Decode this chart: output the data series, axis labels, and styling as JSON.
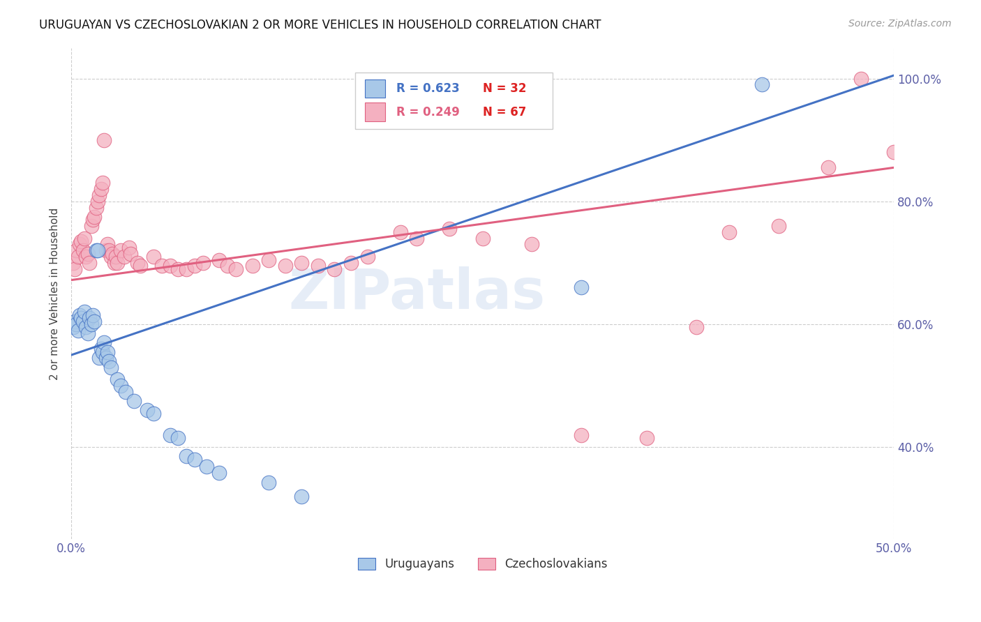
{
  "title": "URUGUAYAN VS CZECHOSLOVAKIAN 2 OR MORE VEHICLES IN HOUSEHOLD CORRELATION CHART",
  "source": "Source: ZipAtlas.com",
  "ylabel": "2 or more Vehicles in Household",
  "xlim": [
    0.0,
    0.5
  ],
  "ylim": [
    0.25,
    1.05
  ],
  "x_ticks": [
    0.0,
    0.5
  ],
  "x_tick_labels": [
    "0.0%",
    "50.0%"
  ],
  "y_ticks": [
    0.4,
    0.6,
    0.8,
    1.0
  ],
  "y_tick_labels": [
    "40.0%",
    "60.0%",
    "80.0%",
    "100.0%"
  ],
  "legend_r1": "R = 0.623",
  "legend_n1": "N = 32",
  "legend_r2": "R = 0.249",
  "legend_n2": "N = 67",
  "blue_color": "#a8c8e8",
  "pink_color": "#f4b0c0",
  "blue_line_color": "#4472c4",
  "pink_line_color": "#e06080",
  "tick_color": "#5b5ea6",
  "watermark_text": "ZIPatlas",
  "blue_scatter": [
    [
      0.001,
      0.595
    ],
    [
      0.002,
      0.605
    ],
    [
      0.003,
      0.6
    ],
    [
      0.004,
      0.59
    ],
    [
      0.005,
      0.615
    ],
    [
      0.006,
      0.61
    ],
    [
      0.007,
      0.605
    ],
    [
      0.008,
      0.62
    ],
    [
      0.009,
      0.595
    ],
    [
      0.01,
      0.585
    ],
    [
      0.011,
      0.61
    ],
    [
      0.012,
      0.6
    ],
    [
      0.013,
      0.615
    ],
    [
      0.014,
      0.605
    ],
    [
      0.015,
      0.72
    ],
    [
      0.016,
      0.72
    ],
    [
      0.017,
      0.545
    ],
    [
      0.018,
      0.56
    ],
    [
      0.019,
      0.555
    ],
    [
      0.02,
      0.57
    ],
    [
      0.021,
      0.545
    ],
    [
      0.022,
      0.555
    ],
    [
      0.023,
      0.54
    ],
    [
      0.024,
      0.53
    ],
    [
      0.028,
      0.51
    ],
    [
      0.03,
      0.5
    ],
    [
      0.033,
      0.49
    ],
    [
      0.038,
      0.475
    ],
    [
      0.046,
      0.46
    ],
    [
      0.05,
      0.455
    ],
    [
      0.06,
      0.42
    ],
    [
      0.065,
      0.415
    ],
    [
      0.07,
      0.385
    ],
    [
      0.075,
      0.38
    ],
    [
      0.082,
      0.368
    ],
    [
      0.09,
      0.358
    ],
    [
      0.12,
      0.342
    ],
    [
      0.14,
      0.32
    ],
    [
      0.31,
      0.66
    ],
    [
      0.42,
      0.99
    ]
  ],
  "pink_scatter": [
    [
      0.001,
      0.7
    ],
    [
      0.002,
      0.69
    ],
    [
      0.003,
      0.72
    ],
    [
      0.004,
      0.71
    ],
    [
      0.005,
      0.73
    ],
    [
      0.006,
      0.735
    ],
    [
      0.007,
      0.72
    ],
    [
      0.008,
      0.74
    ],
    [
      0.009,
      0.71
    ],
    [
      0.01,
      0.715
    ],
    [
      0.011,
      0.7
    ],
    [
      0.012,
      0.76
    ],
    [
      0.013,
      0.77
    ],
    [
      0.014,
      0.775
    ],
    [
      0.015,
      0.79
    ],
    [
      0.016,
      0.8
    ],
    [
      0.017,
      0.81
    ],
    [
      0.018,
      0.82
    ],
    [
      0.019,
      0.83
    ],
    [
      0.02,
      0.9
    ],
    [
      0.021,
      0.72
    ],
    [
      0.022,
      0.73
    ],
    [
      0.023,
      0.72
    ],
    [
      0.024,
      0.71
    ],
    [
      0.025,
      0.715
    ],
    [
      0.026,
      0.7
    ],
    [
      0.027,
      0.71
    ],
    [
      0.028,
      0.7
    ],
    [
      0.03,
      0.72
    ],
    [
      0.032,
      0.71
    ],
    [
      0.035,
      0.725
    ],
    [
      0.036,
      0.715
    ],
    [
      0.04,
      0.7
    ],
    [
      0.042,
      0.695
    ],
    [
      0.05,
      0.71
    ],
    [
      0.055,
      0.695
    ],
    [
      0.06,
      0.695
    ],
    [
      0.065,
      0.69
    ],
    [
      0.07,
      0.69
    ],
    [
      0.075,
      0.695
    ],
    [
      0.08,
      0.7
    ],
    [
      0.09,
      0.705
    ],
    [
      0.095,
      0.695
    ],
    [
      0.1,
      0.69
    ],
    [
      0.11,
      0.695
    ],
    [
      0.12,
      0.705
    ],
    [
      0.13,
      0.695
    ],
    [
      0.14,
      0.7
    ],
    [
      0.15,
      0.695
    ],
    [
      0.16,
      0.69
    ],
    [
      0.17,
      0.7
    ],
    [
      0.18,
      0.71
    ],
    [
      0.2,
      0.75
    ],
    [
      0.21,
      0.74
    ],
    [
      0.23,
      0.755
    ],
    [
      0.25,
      0.74
    ],
    [
      0.28,
      0.73
    ],
    [
      0.31,
      0.42
    ],
    [
      0.35,
      0.415
    ],
    [
      0.38,
      0.595
    ],
    [
      0.4,
      0.75
    ],
    [
      0.43,
      0.76
    ],
    [
      0.46,
      0.855
    ],
    [
      0.48,
      1.0
    ],
    [
      0.5,
      0.88
    ]
  ],
  "blue_line": [
    [
      0.0,
      0.55
    ],
    [
      0.5,
      1.005
    ]
  ],
  "pink_line": [
    [
      0.0,
      0.672
    ],
    [
      0.5,
      0.855
    ]
  ],
  "figsize": [
    14.06,
    8.92
  ],
  "dpi": 100
}
